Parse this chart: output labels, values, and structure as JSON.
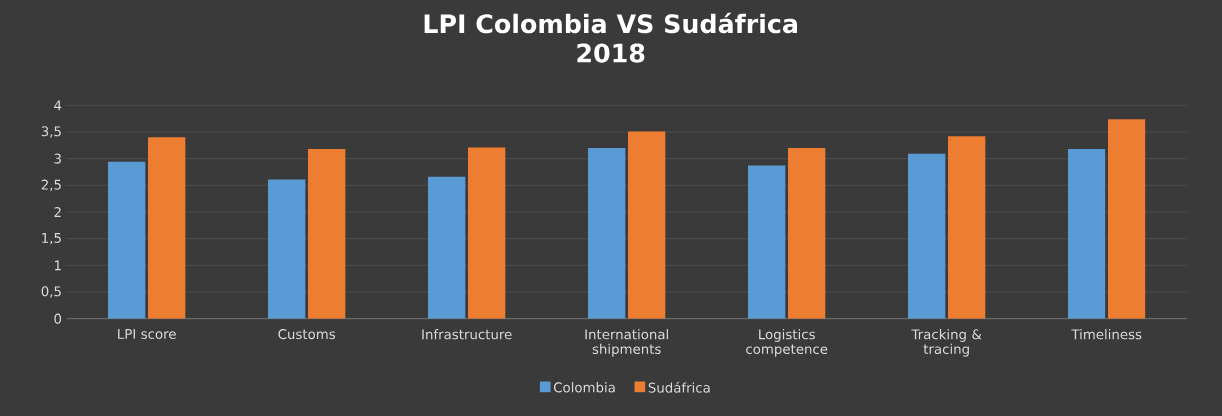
{
  "chart_data": {
    "type": "bar",
    "title": "LPI Colombia  VS Sudáfrica\n2018",
    "categories": [
      "LPI score",
      "Customs",
      "Infrastructure",
      "International shipments",
      "Logistics competence",
      "Tracking & tracing",
      "Timeliness"
    ],
    "series": [
      {
        "name": "Colombia",
        "color": "#5b9bd5",
        "values": [
          2.94,
          2.61,
          2.66,
          3.2,
          2.87,
          3.09,
          3.18
        ]
      },
      {
        "name": "Sudáfrica",
        "color": "#ed7d31",
        "values": [
          3.4,
          3.18,
          3.21,
          3.51,
          3.2,
          3.42,
          3.74
        ]
      }
    ],
    "ylim": [
      0,
      4
    ],
    "yticks": [
      0,
      {
        "value": 0.5,
        "label": "0,5"
      },
      1,
      {
        "value": 1.5,
        "label": "1,5"
      },
      2,
      {
        "value": 2.5,
        "label": "2,5"
      },
      3,
      {
        "value": 3.5,
        "label": "3,5"
      },
      4
    ],
    "grid": "y",
    "legend": "bottom"
  }
}
